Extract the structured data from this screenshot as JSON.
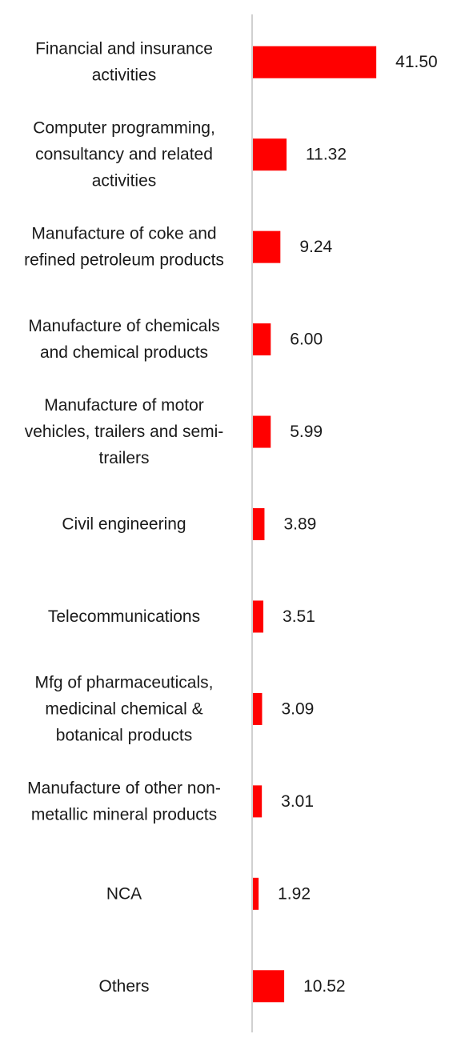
{
  "chart_data": {
    "type": "bar",
    "orientation": "horizontal",
    "title": "",
    "xlabel": "",
    "ylabel": "",
    "grid": false,
    "legend": "none",
    "xlim": [
      0,
      42
    ],
    "bar_color": "#ff0000",
    "axis_color": "#d0d0d0",
    "categories": [
      [
        "Financial and insurance",
        "activities"
      ],
      [
        "Computer programming,",
        "consultancy and related",
        "activities"
      ],
      [
        "Manufacture of coke and",
        "refined petroleum products"
      ],
      [
        "Manufacture of chemicals",
        "and chemical products"
      ],
      [
        "Manufacture of motor",
        "vehicles, trailers and semi-",
        "trailers"
      ],
      [
        "Civil engineering"
      ],
      [
        "Telecommunications"
      ],
      [
        "Mfg of pharmaceuticals,",
        "medicinal chemical &",
        "botanical products"
      ],
      [
        "Manufacture of other non-",
        "metallic mineral products"
      ],
      [
        "NCA"
      ],
      [
        "Others"
      ]
    ],
    "values": [
      41.5,
      11.32,
      9.24,
      6.0,
      5.99,
      3.89,
      3.51,
      3.09,
      3.01,
      1.92,
      10.52
    ],
    "value_labels": [
      "41.50",
      "11.32",
      "9.24",
      "6.00",
      "5.99",
      "3.89",
      "3.51",
      "3.09",
      "3.01",
      "1.92",
      "10.52"
    ]
  }
}
